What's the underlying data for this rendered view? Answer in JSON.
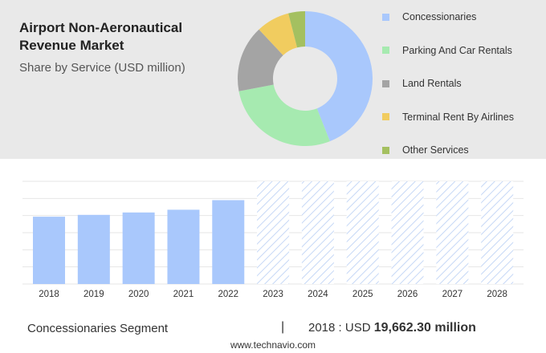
{
  "title": "Airport Non-Aeronautical Revenue Market",
  "subtitle": "Share by Service (USD million)",
  "donut": {
    "segments": [
      {
        "label": "Concessionaries",
        "share": 44,
        "color": "#a9c8fc"
      },
      {
        "label": "Parking And Car Rentals",
        "share": 28,
        "color": "#a6eab0"
      },
      {
        "label": "Land Rentals",
        "share": 16,
        "color": "#a4a4a4"
      },
      {
        "label": "Terminal Rent By Airlines",
        "share": 8,
        "color": "#f1cc5f"
      },
      {
        "label": "Other Services",
        "share": 4,
        "color": "#a4c060"
      }
    ]
  },
  "chart_data": {
    "type": "bar",
    "categories": [
      "2018",
      "2019",
      "2020",
      "2021",
      "2022",
      "2023",
      "2024",
      "2025",
      "2026",
      "2027",
      "2028"
    ],
    "values": [
      19662.3,
      20200,
      20900,
      21700,
      24500,
      null,
      null,
      null,
      null,
      null,
      null
    ],
    "forecast_categories": [
      "2023",
      "2024",
      "2025",
      "2026",
      "2027",
      "2028"
    ],
    "ylim": [
      0,
      30000
    ],
    "grid": true,
    "bar_color": "#a9c8fc"
  },
  "footer": {
    "segment_label": "Concessionaries Segment",
    "separator": "|",
    "year_prefix": "2018 : USD ",
    "year_value": "19,662.30 million"
  },
  "source": "www.technavio.com"
}
